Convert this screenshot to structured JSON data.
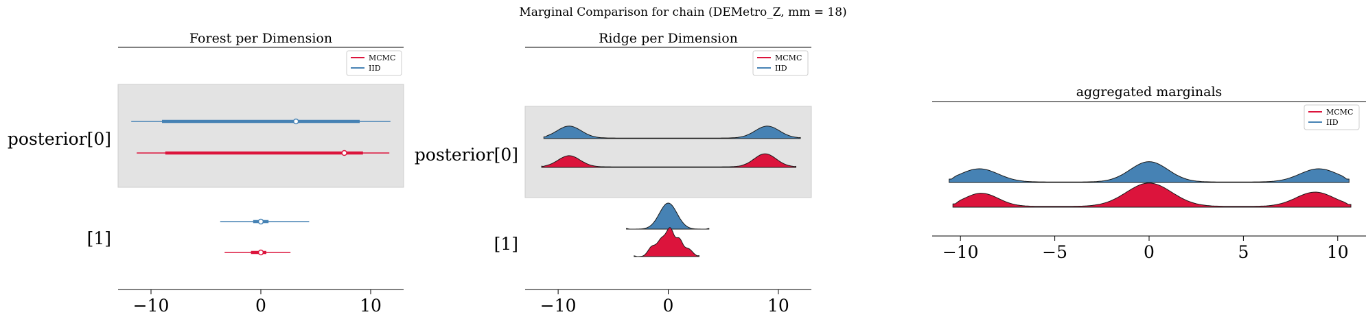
{
  "suptitle": "Marginal Comparison for chain (DEMetro_Z, mm = 18)",
  "colors": {
    "mcmc": "#dc143c",
    "iid": "#4682b4",
    "band": "#e3e3e3",
    "axis": "#000000"
  },
  "legend": [
    {
      "label": "MCMC",
      "color": "#dc143c"
    },
    {
      "label": "IID",
      "color": "#4682b4"
    }
  ],
  "chart_data": [
    {
      "type": "forest",
      "title": "Forest per Dimension",
      "xlim": [
        -13,
        13
      ],
      "xticks": [
        -10,
        0,
        10
      ],
      "xtick_labels": [
        "−10",
        "0",
        "10"
      ],
      "ylabels": [
        "posterior[0]",
        "[1]"
      ],
      "band_shaded": [
        true,
        false
      ],
      "series": [
        {
          "name": "IID",
          "dim": 0,
          "low": -11.8,
          "q25": -9.0,
          "median": 3.2,
          "q75": 9.0,
          "high": 11.8
        },
        {
          "name": "MCMC",
          "dim": 0,
          "low": -11.3,
          "q25": -8.7,
          "median": 7.6,
          "q75": 9.3,
          "high": 11.7
        },
        {
          "name": "IID",
          "dim": 1,
          "low": -3.7,
          "q25": -0.7,
          "median": 0.0,
          "q75": 0.7,
          "high": 4.4
        },
        {
          "name": "MCMC",
          "dim": 1,
          "low": -3.3,
          "q25": -0.9,
          "median": 0.0,
          "q75": 0.5,
          "high": 2.7
        }
      ]
    },
    {
      "type": "ridge",
      "title": "Ridge per Dimension",
      "xlim": [
        -13,
        13
      ],
      "xticks": [
        -10,
        0,
        10
      ],
      "xtick_labels": [
        "−10",
        "0",
        "10"
      ],
      "ylabels": [
        "posterior[0]",
        "[1]"
      ],
      "band_shaded": [
        true,
        false
      ],
      "series": [
        {
          "name": "IID",
          "dim": 0,
          "range": [
            -11.3,
            12.0
          ],
          "peaks": [
            {
              "mu": -9.0,
              "sd": 1.1,
              "h": 0.62
            },
            {
              "mu": 9.0,
              "sd": 1.1,
              "h": 0.62
            }
          ],
          "base": 0.03
        },
        {
          "name": "MCMC",
          "dim": 0,
          "range": [
            -11.5,
            11.6
          ],
          "peaks": [
            {
              "mu": -9.0,
              "sd": 1.0,
              "h": 0.58
            },
            {
              "mu": 8.8,
              "sd": 1.0,
              "h": 0.68
            }
          ],
          "base": 0.03
        },
        {
          "name": "IID",
          "dim": 1,
          "range": [
            -3.8,
            3.7
          ],
          "peaks": [
            {
              "mu": 0.0,
              "sd": 0.8,
              "h": 1.0
            }
          ],
          "base": 0.0
        },
        {
          "name": "MCMC",
          "dim": 1,
          "range": [
            -3.1,
            2.8
          ],
          "peaks": [
            {
              "mu": -1.5,
              "sd": 0.35,
              "h": 0.35
            },
            {
              "mu": -0.6,
              "sd": 0.4,
              "h": 0.65
            },
            {
              "mu": 0.2,
              "sd": 0.35,
              "h": 1.0
            },
            {
              "mu": 1.0,
              "sd": 0.3,
              "h": 0.6
            },
            {
              "mu": 1.8,
              "sd": 0.4,
              "h": 0.3
            }
          ],
          "base": 0.0
        }
      ]
    },
    {
      "type": "ridge",
      "title": "aggregated marginals",
      "xlim": [
        -11.5,
        11.5
      ],
      "xticks": [
        -10,
        -5,
        0,
        5,
        10
      ],
      "xtick_labels": [
        "−10",
        "−5",
        "0",
        "5",
        "10"
      ],
      "ylabels": [],
      "band_shaded": [],
      "series": [
        {
          "name": "IID",
          "range": [
            -10.6,
            10.6
          ],
          "peaks": [
            {
              "mu": -9.0,
              "sd": 1.0,
              "h": 0.48
            },
            {
              "mu": 0.0,
              "sd": 1.0,
              "h": 0.74
            },
            {
              "mu": 9.0,
              "sd": 1.0,
              "h": 0.48
            }
          ],
          "base": 0.02
        },
        {
          "name": "MCMC",
          "range": [
            -10.4,
            10.7
          ],
          "peaks": [
            {
              "mu": -8.9,
              "sd": 0.9,
              "h": 0.48
            },
            {
              "mu": 0.0,
              "sd": 1.2,
              "h": 0.85
            },
            {
              "mu": 8.8,
              "sd": 1.0,
              "h": 0.52
            }
          ],
          "base": 0.03
        }
      ]
    }
  ]
}
